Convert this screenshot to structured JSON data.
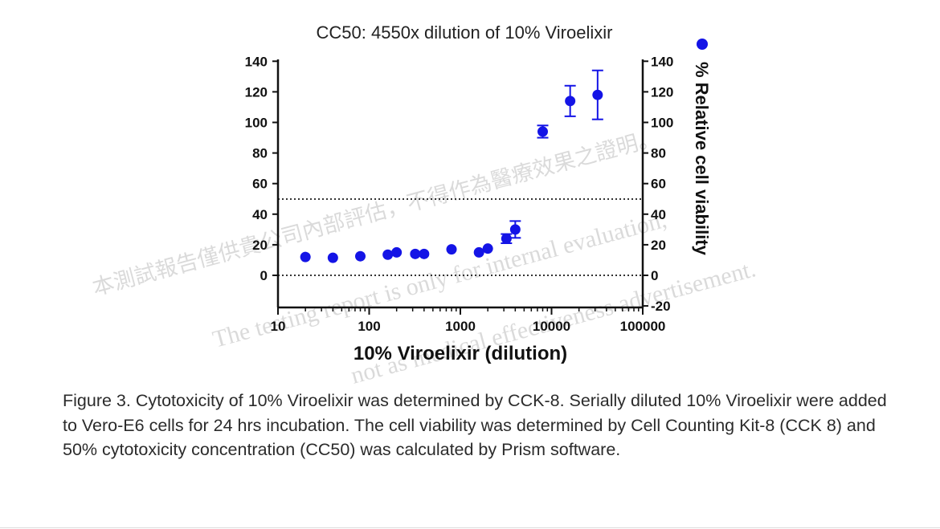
{
  "chart_data": {
    "type": "scatter",
    "title": "CC50: 4550x dilution of 10% Viroelixir",
    "xlabel": "10% Viroelixir (dilution)",
    "ylabel": "% Relative cell viability",
    "x_scale": "log",
    "xlim": [
      10,
      100000
    ],
    "ylim_left": [
      0,
      140
    ],
    "ylim_right": [
      -20,
      140
    ],
    "x_ticks": [
      "10",
      "100",
      "1000",
      "10000",
      "100000"
    ],
    "y_ticks_left": [
      "0",
      "20",
      "40",
      "60",
      "80",
      "100",
      "120",
      "140"
    ],
    "y_ticks_right": [
      "-20",
      "0",
      "20",
      "40",
      "60",
      "80",
      "100",
      "120",
      "140"
    ],
    "reference_lines": [
      0,
      50
    ],
    "legend_position": "top-right",
    "marker_color": "#1414e6",
    "series": [
      {
        "x": [
          20,
          40,
          80,
          160,
          200,
          320,
          400,
          800,
          1600,
          2000,
          3200,
          4000,
          8000,
          16000,
          32000
        ],
        "y": [
          12,
          11.5,
          12.5,
          13.5,
          15,
          14,
          14,
          17,
          15,
          17.5,
          24,
          30,
          94,
          114,
          118
        ],
        "error": [
          1,
          1,
          1,
          1.5,
          1.5,
          1,
          1,
          1.5,
          2,
          2,
          3,
          5.5,
          4,
          10,
          16
        ]
      }
    ],
    "watermark": [
      "本測試報告僅供貴公司內部評估，不得作為醫療效果之證明。",
      "The testing report is only for internal evaluation,",
      "not as medical effectiveness advertisement."
    ]
  },
  "caption": "Figure 3. Cytotoxicity of 10% Viroelixir was determined by CCK-8. Serially diluted 10% Viroelixir were added to Vero-E6 cells for 24 hrs incubation. The cell viability was determined by Cell Counting Kit-8 (CCK 8) and 50% cytotoxicity concentration (CC50) was calculated by Prism software."
}
